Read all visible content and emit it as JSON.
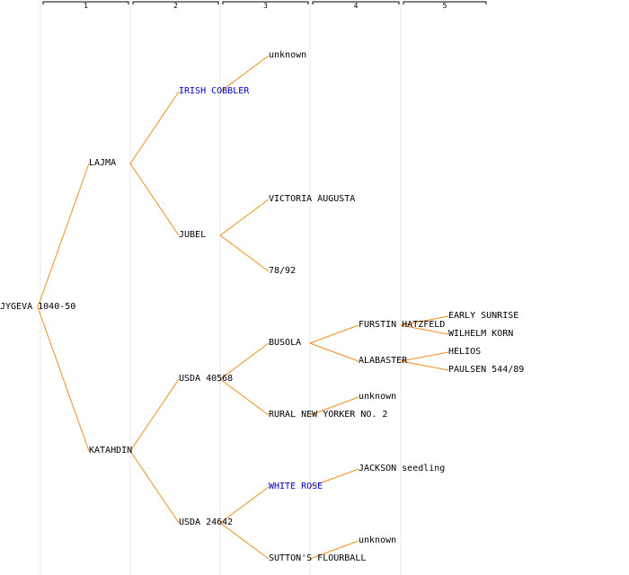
{
  "colors": {
    "edge": "#f08c1e",
    "grid": "#e8e8e8",
    "header": "#000000",
    "text": "#000000",
    "link": "#0000cc"
  },
  "generations": [
    "1",
    "2",
    "3",
    "4",
    "5"
  ],
  "nodes": [
    {
      "id": "root",
      "label": "JYGEVA 1040-50",
      "gen": 0,
      "row": 16
    },
    {
      "id": "lajma",
      "label": "LAJMA",
      "gen": 1,
      "row": 8,
      "parent": "root"
    },
    {
      "id": "katahdin",
      "label": "KATAHDIN",
      "gen": 1,
      "row": 24,
      "parent": "root"
    },
    {
      "id": "irish-cobbler",
      "label": "IRISH COBBLER",
      "gen": 2,
      "row": 4,
      "parent": "lajma",
      "color": "link"
    },
    {
      "id": "jubel",
      "label": "JUBEL",
      "gen": 2,
      "row": 12,
      "parent": "lajma"
    },
    {
      "id": "usda-40568",
      "label": "USDA 40568",
      "gen": 2,
      "row": 20,
      "parent": "katahdin"
    },
    {
      "id": "usda-24642",
      "label": "USDA 24642",
      "gen": 2,
      "row": 28,
      "parent": "katahdin"
    },
    {
      "id": "unknown-1",
      "label": "unknown",
      "gen": 3,
      "row": 2,
      "parent": "irish-cobbler"
    },
    {
      "id": "victoria-augusta",
      "label": "VICTORIA AUGUSTA",
      "gen": 3,
      "row": 10,
      "parent": "jubel"
    },
    {
      "id": "n78-92",
      "label": "78/92",
      "gen": 3,
      "row": 14,
      "parent": "jubel"
    },
    {
      "id": "busola",
      "label": "BUSOLA",
      "gen": 3,
      "row": 18,
      "parent": "usda-40568"
    },
    {
      "id": "rural-new-yorker",
      "label": "RURAL NEW YORKER NO. 2",
      "gen": 3,
      "row": 22,
      "parent": "usda-40568"
    },
    {
      "id": "white-rose",
      "label": "WHITE ROSE",
      "gen": 3,
      "row": 26,
      "parent": "usda-24642",
      "color": "link"
    },
    {
      "id": "suttons-flourball",
      "label": "SUTTON'S FLOURBALL",
      "gen": 3,
      "row": 30,
      "parent": "usda-24642"
    },
    {
      "id": "furstin-hatzfeld",
      "label": "FURSTIN HATZFELD",
      "gen": 4,
      "row": 17,
      "parent": "busola"
    },
    {
      "id": "alabaster",
      "label": "ALABASTER",
      "gen": 4,
      "row": 19,
      "parent": "busola"
    },
    {
      "id": "unknown-2",
      "label": "unknown",
      "gen": 4,
      "row": 21,
      "parent": "rural-new-yorker"
    },
    {
      "id": "jackson-seedling",
      "label": "JACKSON seedling",
      "gen": 4,
      "row": 25,
      "parent": "white-rose"
    },
    {
      "id": "unknown-3",
      "label": "unknown",
      "gen": 4,
      "row": 29,
      "parent": "suttons-flourball"
    },
    {
      "id": "early-sunrise",
      "label": "EARLY SUNRISE",
      "gen": 5,
      "row": 16.5,
      "parent": "furstin-hatzfeld"
    },
    {
      "id": "wilhelm-korn",
      "label": "WILHELM KORN",
      "gen": 5,
      "row": 17.5,
      "parent": "furstin-hatzfeld"
    },
    {
      "id": "helios",
      "label": "HELIOS",
      "gen": 5,
      "row": 18.5,
      "parent": "alabaster"
    },
    {
      "id": "paulsen",
      "label": "PAULSEN 544/89",
      "gen": 5,
      "row": 19.5,
      "parent": "alabaster"
    }
  ]
}
